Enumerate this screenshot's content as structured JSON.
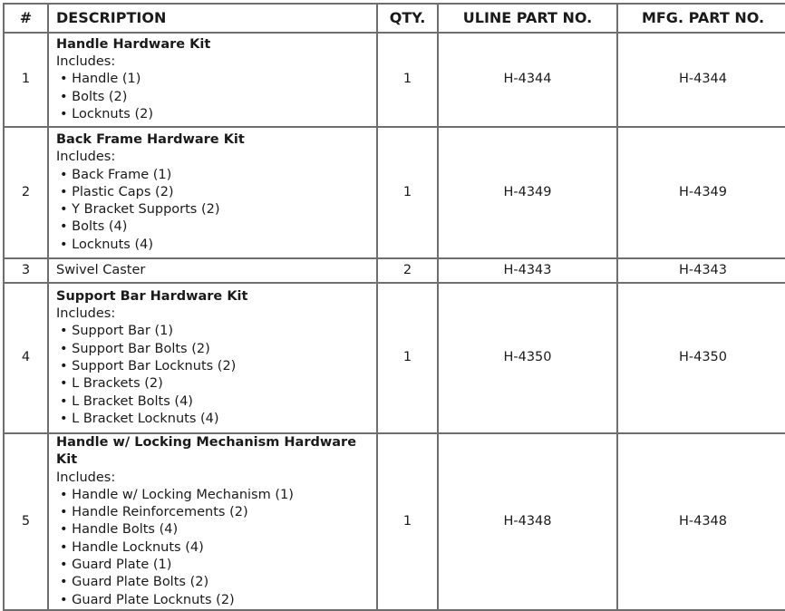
{
  "headers": [
    "#",
    "DESCRIPTION",
    "QTY.",
    "ULINE PART NO.",
    "MFG. PART NO."
  ],
  "rows": [
    {
      "num": "1",
      "title": "Handle Hardware Kit",
      "includes": "Includes:",
      "items": [
        "• Handle (1)",
        "• Bolts (2)",
        "• Locknuts (2)"
      ],
      "qty": "1",
      "uline": "H-4344",
      "mfg": "H-4344"
    },
    {
      "num": "2",
      "title": "Back Frame Hardware Kit",
      "includes": "Includes:",
      "items": [
        "• Back Frame (1)",
        "• Plastic Caps (2)",
        "• Y Bracket Supports (2)",
        "• Bolts (4)",
        "• Locknuts (4)"
      ],
      "qty": "1",
      "uline": "H-4349",
      "mfg": "H-4349"
    },
    {
      "num": "3",
      "title": "Swivel Caster",
      "qty": "2",
      "uline": "H-4343",
      "mfg": "H-4343"
    },
    {
      "num": "4",
      "title": "Support Bar Hardware Kit",
      "includes": "Includes:",
      "items": [
        "• Support Bar (1)",
        "• Support Bar Bolts (2)",
        "• Support Bar Locknuts (2)",
        "• L Brackets (2)",
        "• L Bracket Bolts (4)",
        "• L Bracket Locknuts (4)"
      ],
      "qty": "1",
      "uline": "H-4350",
      "mfg": "H-4350"
    },
    {
      "num": "5",
      "title": "Handle w/ Locking Mechanism Hardware Kit",
      "includes": "Includes:",
      "items": [
        "• Handle w/ Locking Mechanism (1)",
        "• Handle Reinforcements (2)",
        "• Handle Bolts (4)",
        "• Handle Locknuts (4)",
        "• Guard Plate (1)",
        "• Guard Plate Bolts (2)",
        "• Guard Plate Locknuts (2)"
      ],
      "qty": "1",
      "uline": "H-4348",
      "mfg": "H-4348"
    }
  ]
}
